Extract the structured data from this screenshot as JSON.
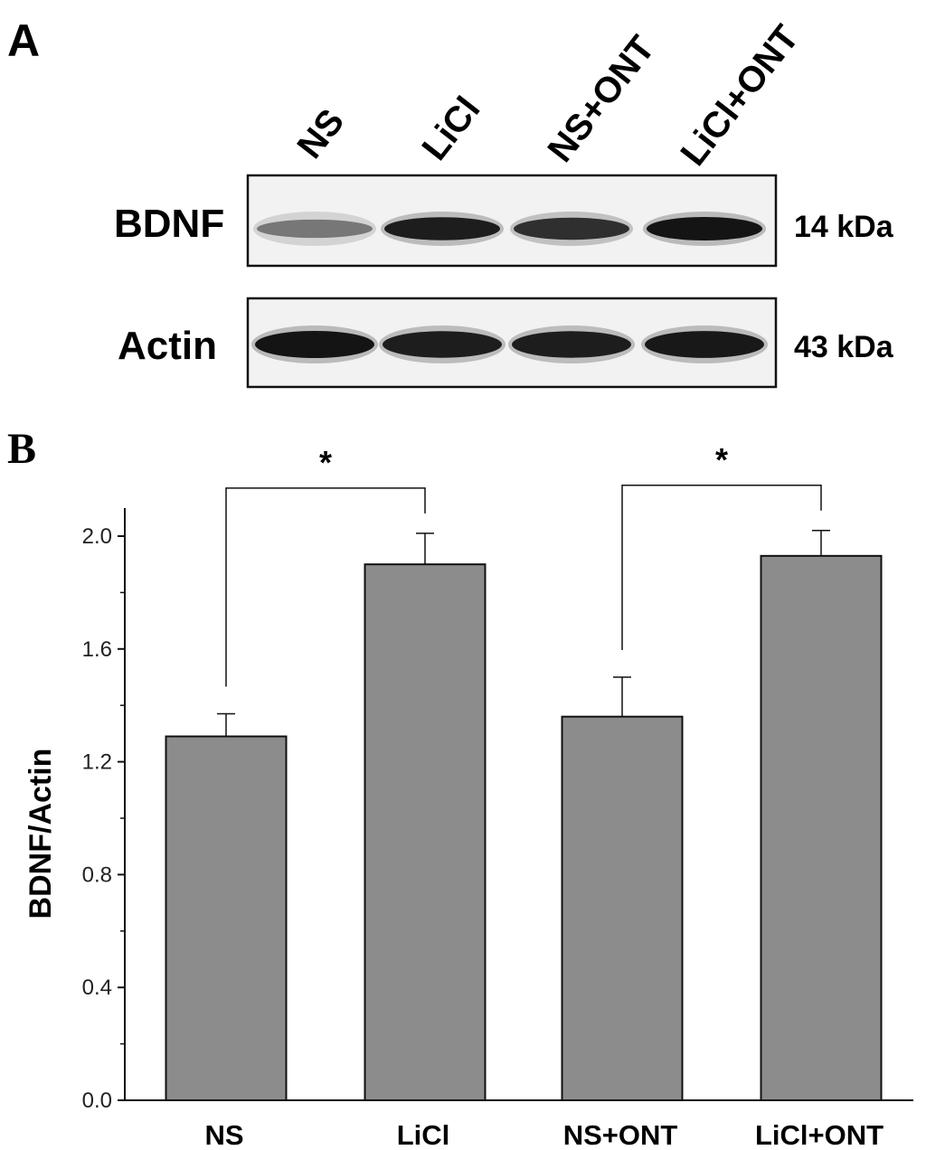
{
  "panel_a": {
    "label": "A",
    "lanes": [
      "NS",
      "LiCl",
      "NS+ONT",
      "LiCl+ONT"
    ],
    "blots": [
      {
        "protein": "BDNF",
        "size": "14 kDa",
        "intensity": [
          0.45,
          0.95,
          0.85,
          1.0
        ]
      },
      {
        "protein": "Actin",
        "size": "43 kDa",
        "intensity": [
          1.0,
          0.95,
          0.95,
          0.98
        ]
      }
    ]
  },
  "panel_b": {
    "label": "B",
    "significance": [
      {
        "from": 0,
        "to": 1,
        "label": "*"
      },
      {
        "from": 2,
        "to": 3,
        "label": "*"
      }
    ]
  },
  "chart_data": {
    "type": "bar",
    "categories": [
      "NS",
      "LiCl",
      "NS+ONT",
      "LiCl+ONT"
    ],
    "values": [
      1.29,
      1.9,
      1.36,
      1.93
    ],
    "errors": [
      0.08,
      0.11,
      0.14,
      0.09
    ],
    "ylabel": "BDNF/Actin",
    "xlabel": "",
    "ylim": [
      0,
      2.0
    ],
    "yticks": [
      "0.0",
      "0.4",
      "0.8",
      "1.2",
      "1.6",
      "2.0"
    ],
    "bar_color": "#8c8c8c",
    "grid": false
  }
}
